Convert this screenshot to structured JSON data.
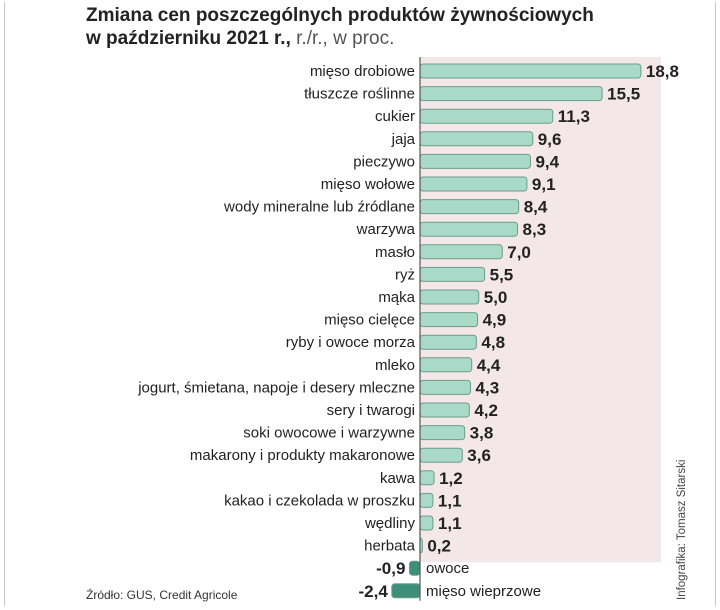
{
  "header": {
    "title_line1": "Zmiana cen poszczególnych produktów żywnościowych",
    "title_line2": "w październiku 2021 r.,",
    "title_unit": " r./r., w proc."
  },
  "footer": {
    "source": "Źródło: GUS, Credit Agricole",
    "credit": "Infografika: Tomasz Sitarski"
  },
  "colors": {
    "bar_fill": "#a9d9c8",
    "bar_stroke": "#6f9c8c",
    "neg_fill": "#3d8f7a",
    "panel_fill": "#f3e7e7",
    "axis": "#555555"
  },
  "chart_data": {
    "type": "bar",
    "orientation": "horizontal",
    "title": "Zmiana cen poszczególnych produktów żywnościowych w październiku 2021 r., r./r., w proc.",
    "categories": [
      "mięso drobiowe",
      "tłuszcze roślinne",
      "cukier",
      "jaja",
      "pieczywo",
      "mięso wołowe",
      "wody mineralne lub źródlane",
      "warzywa",
      "masło",
      "ryż",
      "mąka",
      "mięso cielęce",
      "ryby i owoce morza",
      "mleko",
      "jogurt, śmietana, napoje i desery mleczne",
      "sery i twarogi",
      "soki owocowe i warzywne",
      "makarony i produkty makaronowe",
      "kawa",
      "kakao i czekolada w proszku",
      "wędliny",
      "herbata",
      "owoce",
      "mięso wieprzowe"
    ],
    "values": [
      18.8,
      15.5,
      11.3,
      9.6,
      9.4,
      9.1,
      8.4,
      8.3,
      7.0,
      5.5,
      5.0,
      4.9,
      4.8,
      4.4,
      4.3,
      4.2,
      3.8,
      3.6,
      1.2,
      1.1,
      1.1,
      0.2,
      -0.9,
      -2.4
    ],
    "value_labels": [
      "18,8",
      "15,5",
      "11,3",
      "9,6",
      "9,4",
      "9,1",
      "8,4",
      "8,3",
      "7,0",
      "5,5",
      "5,0",
      "4,9",
      "4,8",
      "4,4",
      "4,3",
      "4,2",
      "3,8",
      "3,6",
      "1,2",
      "1,1",
      "1,1",
      "0,2",
      "-0,9",
      "-2,4"
    ],
    "xlim": [
      -2.4,
      18.8
    ],
    "grid": false,
    "legend": "none"
  }
}
